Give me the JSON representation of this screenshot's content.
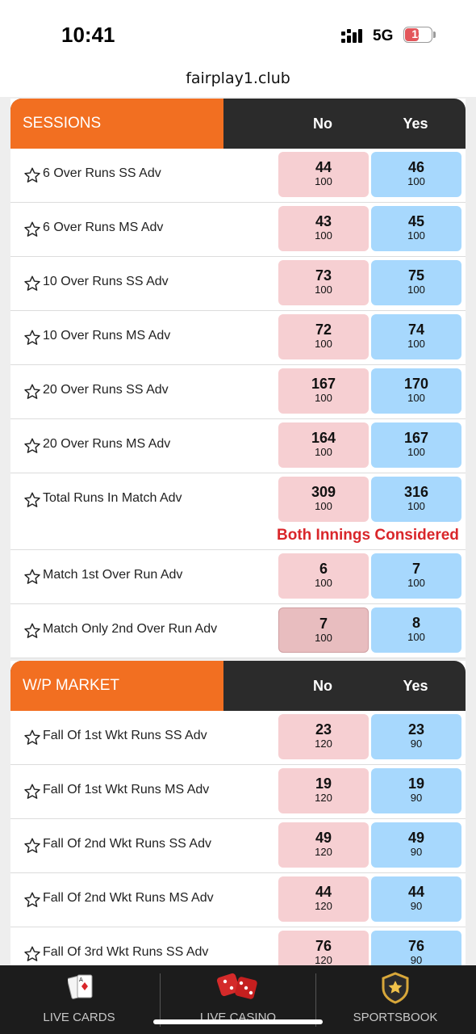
{
  "status": {
    "time": "10:41",
    "network": "5G",
    "battery": "13"
  },
  "browser": {
    "url": "fairplay1.club"
  },
  "colors": {
    "accent": "#f26f21",
    "header_dark": "#2b2b2b",
    "no_bg": "#f6cfd2",
    "yes_bg": "#a7d8fd",
    "note": "#d9262a"
  },
  "markets": [
    {
      "title": "SESSIONS",
      "col_no": "No",
      "col_yes": "Yes",
      "rows": [
        {
          "label": "6 Over Runs SS Adv",
          "no": "44",
          "no_size": "100",
          "yes": "46",
          "yes_size": "100"
        },
        {
          "label": "6 Over Runs MS Adv",
          "no": "43",
          "no_size": "100",
          "yes": "45",
          "yes_size": "100"
        },
        {
          "label": "10 Over Runs SS Adv",
          "no": "73",
          "no_size": "100",
          "yes": "75",
          "yes_size": "100"
        },
        {
          "label": "10 Over Runs MS Adv",
          "no": "72",
          "no_size": "100",
          "yes": "74",
          "yes_size": "100"
        },
        {
          "label": "20 Over Runs SS Adv",
          "no": "167",
          "no_size": "100",
          "yes": "170",
          "yes_size": "100"
        },
        {
          "label": "20 Over Runs MS Adv",
          "no": "164",
          "no_size": "100",
          "yes": "167",
          "yes_size": "100"
        },
        {
          "label": "Total Runs In Match Adv",
          "no": "309",
          "no_size": "100",
          "yes": "316",
          "yes_size": "100",
          "note": "Both Innings Considered"
        },
        {
          "label": "Match 1st Over Run Adv",
          "no": "6",
          "no_size": "100",
          "yes": "7",
          "yes_size": "100"
        },
        {
          "label": "Match Only 2nd Over Run Adv",
          "no": "7",
          "no_size": "100",
          "yes": "8",
          "yes_size": "100"
        }
      ]
    },
    {
      "title": "W/P MARKET",
      "col_no": "No",
      "col_yes": "Yes",
      "rows": [
        {
          "label": "Fall Of 1st Wkt Runs SS Adv",
          "no": "23",
          "no_size": "120",
          "yes": "23",
          "yes_size": "90"
        },
        {
          "label": "Fall Of 1st Wkt Runs MS Adv",
          "no": "19",
          "no_size": "120",
          "yes": "19",
          "yes_size": "90"
        },
        {
          "label": "Fall Of 2nd Wkt Runs SS Adv",
          "no": "49",
          "no_size": "120",
          "yes": "49",
          "yes_size": "90"
        },
        {
          "label": "Fall Of 2nd Wkt Runs MS Adv",
          "no": "44",
          "no_size": "120",
          "yes": "44",
          "yes_size": "90"
        },
        {
          "label": "Fall Of 3rd Wkt Runs SS Adv",
          "no": "76",
          "no_size": "120",
          "yes": "76",
          "yes_size": "90"
        }
      ]
    }
  ],
  "bottom_nav": [
    {
      "label": "LIVE CARDS",
      "icon": "playing-cards-icon"
    },
    {
      "label": "LIVE CASINO",
      "icon": "dice-icon"
    },
    {
      "label": "SPORTSBOOK",
      "icon": "shield-star-icon"
    }
  ]
}
